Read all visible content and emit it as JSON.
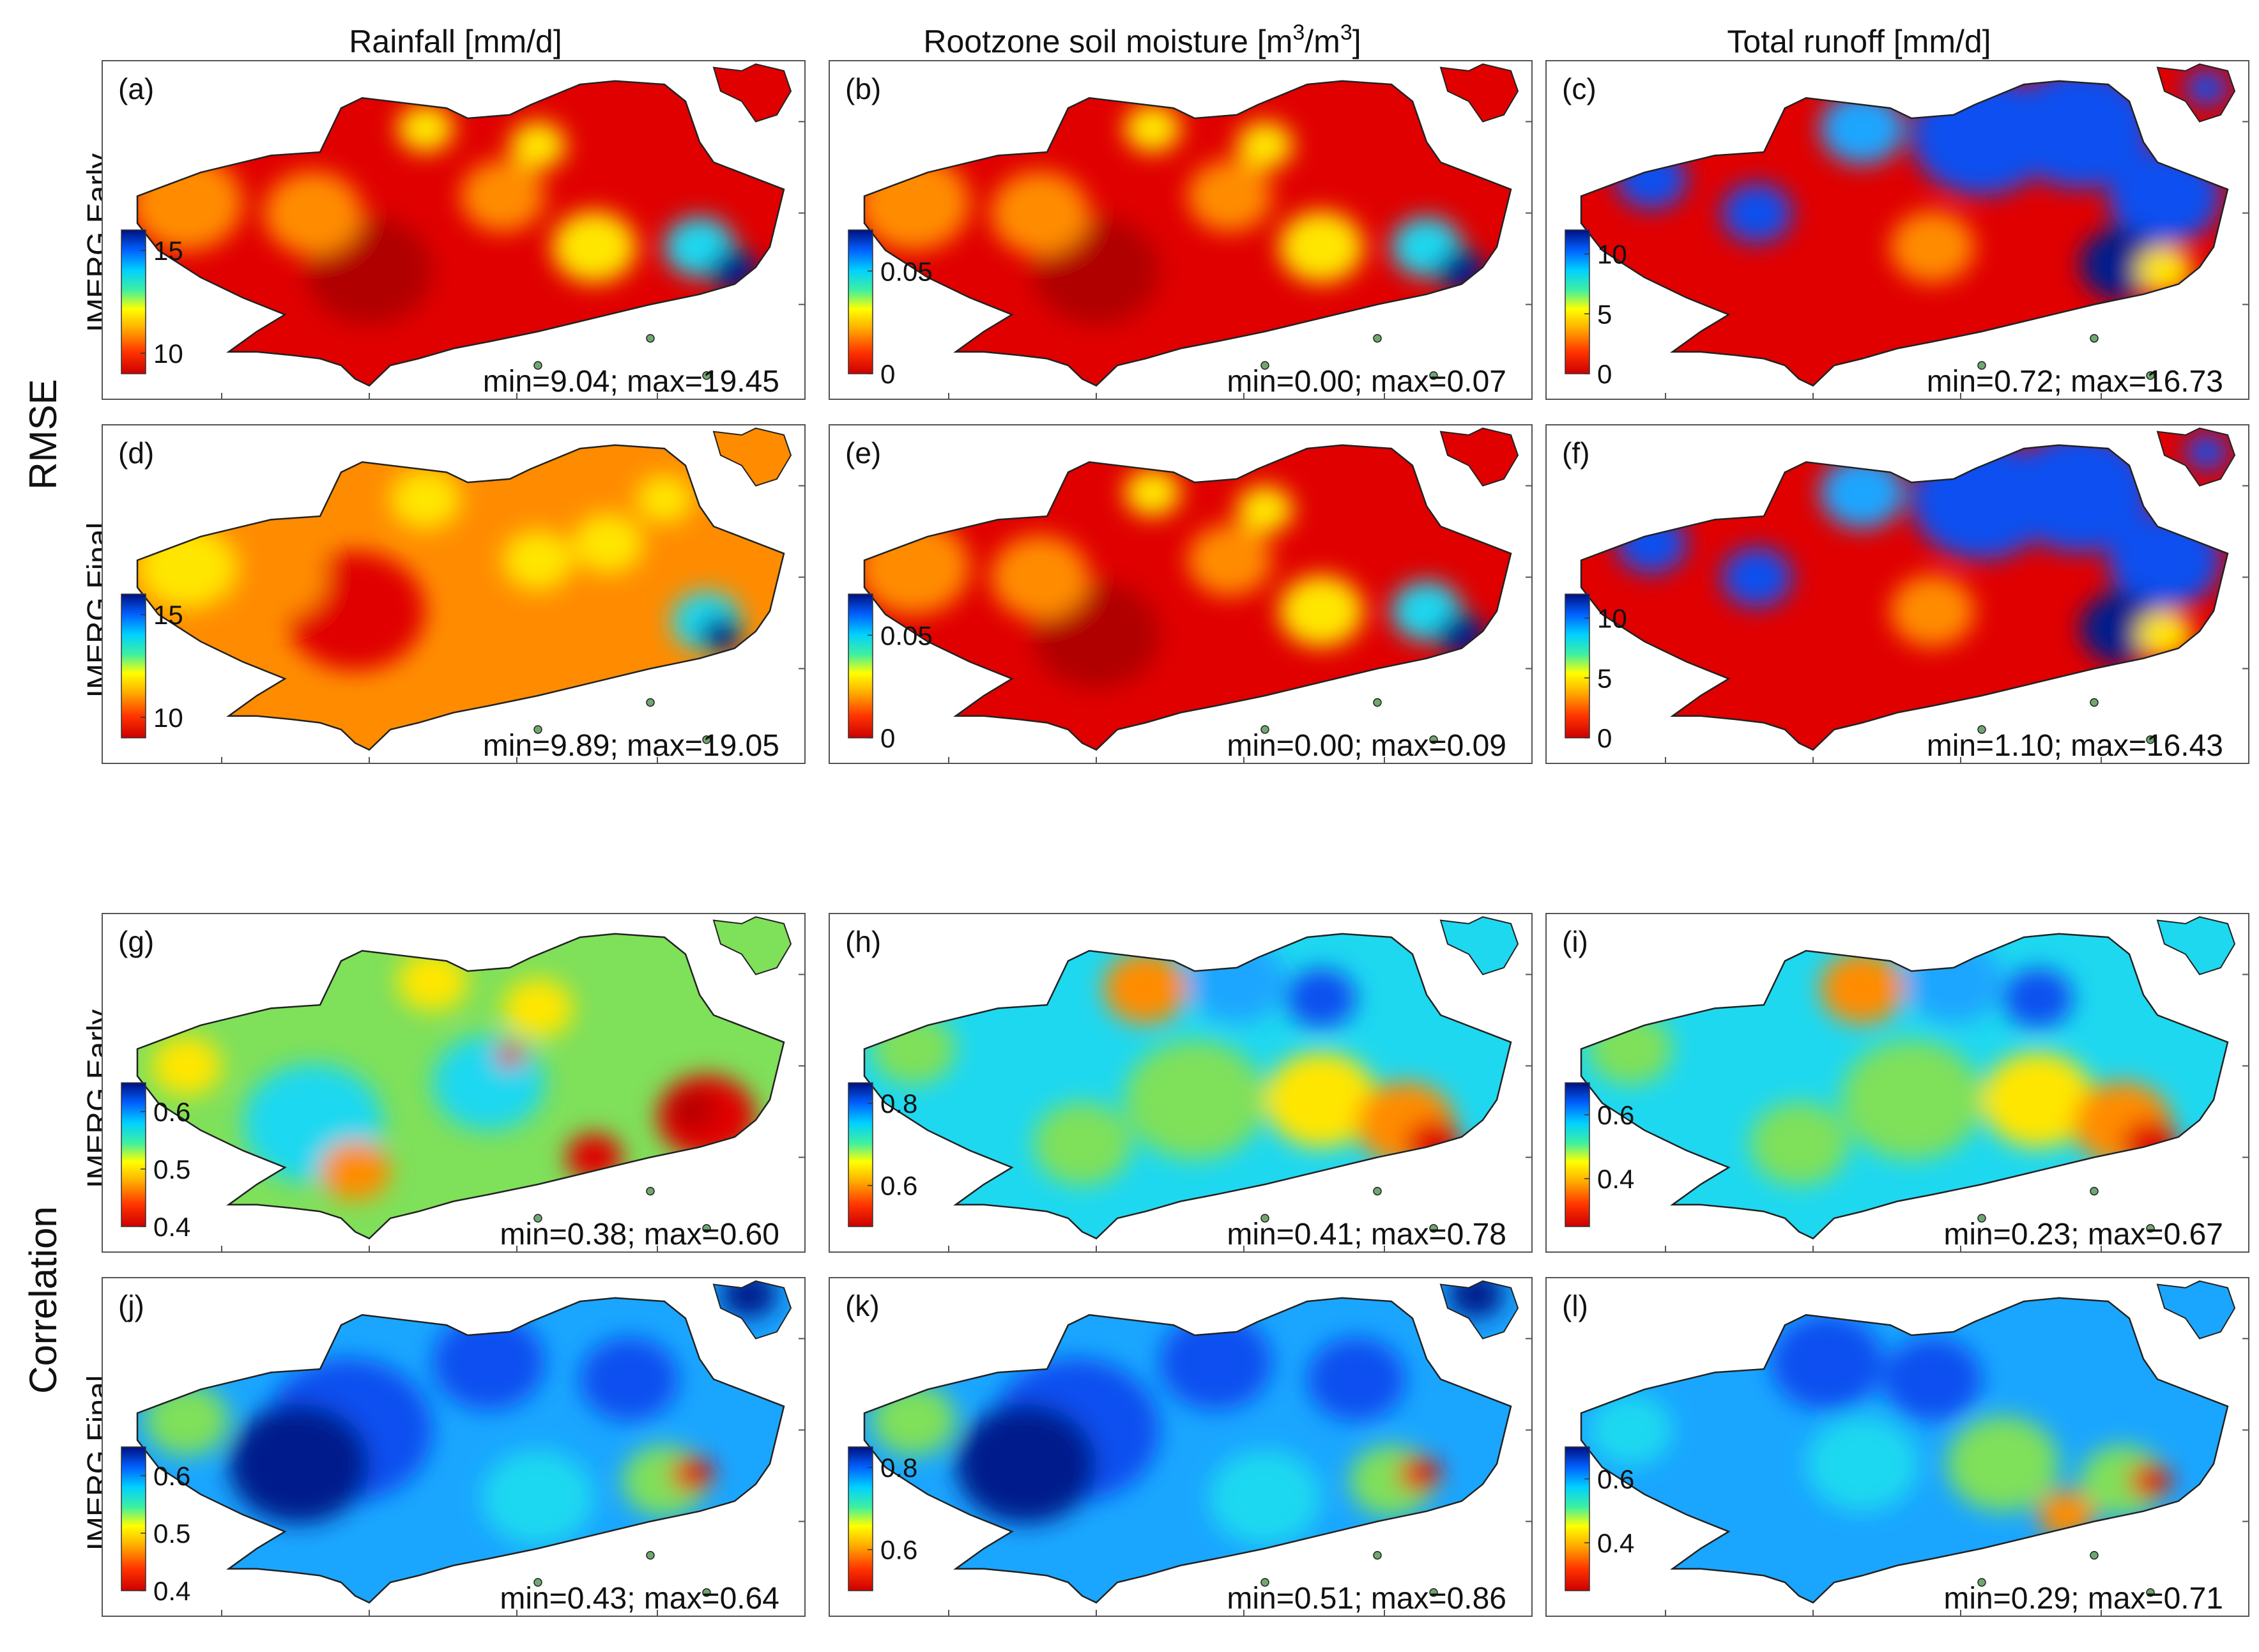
{
  "figure": {
    "column_titles": [
      "Rainfall [mm/d]",
      "Rootzone soil moisture [m3/m3]",
      "Total runoff [mm/d]"
    ],
    "soil_title_parts": {
      "prefix": "Rootzone soil moisture [m",
      "sup1": "3",
      "mid": "/m",
      "sup2": "3",
      "suffix": "]"
    },
    "row_groups": [
      "RMSE",
      "Correlation"
    ],
    "row_labels": [
      "IMERG Early",
      "IMERG Final",
      "IMERG Early",
      "IMERG Final"
    ]
  },
  "colors": {
    "red": "#e00000",
    "darkred": "#b00000",
    "orange": "#ff8c00",
    "yellow": "#ffe600",
    "green": "#7fe05a",
    "cyan": "#1ed8f0",
    "sky": "#1aa6ff",
    "blue": "#0a50f0",
    "navy": "#001d8c"
  },
  "chart_data": [
    {
      "type": "heatmap",
      "panel": "(a)",
      "row": "IMERG Early",
      "metric": "RMSE",
      "variable": "Rainfall [mm/d]",
      "colorbar": {
        "ticks": [
          "15",
          "10"
        ],
        "range": [
          9,
          16
        ]
      },
      "stats": "min=9.04; max=19.45",
      "min": 9.04,
      "max": 19.45,
      "field": "red"
    },
    {
      "type": "heatmap",
      "panel": "(b)",
      "row": "IMERG Early",
      "metric": "RMSE",
      "variable": "Rootzone soil moisture [m3/m3]",
      "colorbar": {
        "ticks": [
          "0.05",
          "0"
        ],
        "range": [
          0,
          0.07
        ]
      },
      "stats": "min=0.00; max=0.07",
      "min": 0.0,
      "max": 0.07,
      "field": "red"
    },
    {
      "type": "heatmap",
      "panel": "(c)",
      "row": "IMERG Early",
      "metric": "RMSE",
      "variable": "Total runoff [mm/d]",
      "colorbar": {
        "ticks": [
          "10",
          "5",
          "0"
        ],
        "range": [
          0,
          12
        ]
      },
      "stats": "min=0.72; max=16.73",
      "min": 0.72,
      "max": 16.73,
      "field": "redblue"
    },
    {
      "type": "heatmap",
      "panel": "(d)",
      "row": "IMERG Final",
      "metric": "RMSE",
      "variable": "Rainfall [mm/d]",
      "colorbar": {
        "ticks": [
          "15",
          "10"
        ],
        "range": [
          9,
          16
        ]
      },
      "stats": "min=9.89; max=19.05",
      "min": 9.89,
      "max": 19.05,
      "field": "orange"
    },
    {
      "type": "heatmap",
      "panel": "(e)",
      "row": "IMERG Final",
      "metric": "RMSE",
      "variable": "Rootzone soil moisture [m3/m3]",
      "colorbar": {
        "ticks": [
          "0.05",
          "0"
        ],
        "range": [
          0,
          0.07
        ]
      },
      "stats": "min=0.00; max=0.09",
      "min": 0.0,
      "max": 0.09,
      "field": "red"
    },
    {
      "type": "heatmap",
      "panel": "(f)",
      "row": "IMERG Final",
      "metric": "RMSE",
      "variable": "Total runoff [mm/d]",
      "colorbar": {
        "ticks": [
          "10",
          "5",
          "0"
        ],
        "range": [
          0,
          12
        ]
      },
      "stats": "min=1.10; max=16.43",
      "min": 1.1,
      "max": 16.43,
      "field": "redblue"
    },
    {
      "type": "heatmap",
      "panel": "(g)",
      "row": "IMERG Early",
      "metric": "Correlation",
      "variable": "Rainfall [mm/d]",
      "colorbar": {
        "ticks": [
          "0.6",
          "0.5",
          "0.4"
        ],
        "range": [
          0.4,
          0.65
        ]
      },
      "stats": "min=0.38; max=0.60",
      "min": 0.38,
      "max": 0.6,
      "field": "green"
    },
    {
      "type": "heatmap",
      "panel": "(h)",
      "row": "IMERG Early",
      "metric": "Correlation",
      "variable": "Rootzone soil moisture [m3/m3]",
      "colorbar": {
        "ticks": [
          "0.8",
          "0.6"
        ],
        "range": [
          0.5,
          0.85
        ]
      },
      "stats": "min=0.41; max=0.78",
      "min": 0.41,
      "max": 0.78,
      "field": "cyan"
    },
    {
      "type": "heatmap",
      "panel": "(i)",
      "row": "IMERG Early",
      "metric": "Correlation",
      "variable": "Total runoff [mm/d]",
      "colorbar": {
        "ticks": [
          "0.6",
          "0.4"
        ],
        "range": [
          0.25,
          0.7
        ]
      },
      "stats": "min=0.23; max=0.67",
      "min": 0.23,
      "max": 0.67,
      "field": "cyan"
    },
    {
      "type": "heatmap",
      "panel": "(j)",
      "row": "IMERG Final",
      "metric": "Correlation",
      "variable": "Rainfall [mm/d]",
      "colorbar": {
        "ticks": [
          "0.6",
          "0.5",
          "0.4"
        ],
        "range": [
          0.4,
          0.65
        ]
      },
      "stats": "min=0.43; max=0.64",
      "min": 0.43,
      "max": 0.64,
      "field": "blue"
    },
    {
      "type": "heatmap",
      "panel": "(k)",
      "row": "IMERG Final",
      "metric": "Correlation",
      "variable": "Rootzone soil moisture [m3/m3]",
      "colorbar": {
        "ticks": [
          "0.8",
          "0.6"
        ],
        "range": [
          0.5,
          0.85
        ]
      },
      "stats": "min=0.51; max=0.86",
      "min": 0.51,
      "max": 0.86,
      "field": "blue"
    },
    {
      "type": "heatmap",
      "panel": "(l)",
      "row": "IMERG Final",
      "metric": "Correlation",
      "variable": "Total runoff [mm/d]",
      "colorbar": {
        "ticks": [
          "0.6",
          "0.4"
        ],
        "range": [
          0.25,
          0.7
        ]
      },
      "stats": "min=0.29; max=0.71",
      "min": 0.29,
      "max": 0.71,
      "field": "sky"
    }
  ]
}
